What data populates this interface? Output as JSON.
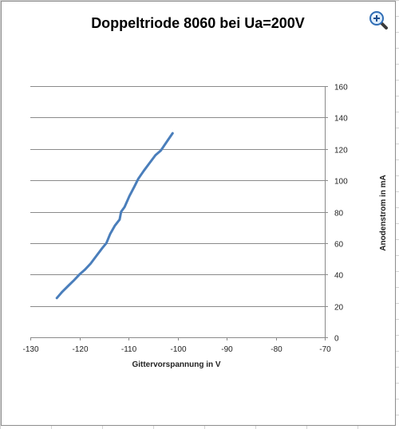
{
  "chart_data": {
    "type": "line",
    "title": "Doppeltriode 8060 bei Ua=200V",
    "xlabel": "Gittervorspannung  in V",
    "ylabel": "Anodenstrom in mA",
    "xlim": [
      -130,
      -70
    ],
    "ylim": [
      0,
      160
    ],
    "xticks": [
      "-130",
      "-120",
      "-110",
      "-100",
      "-90",
      "-80",
      "-70"
    ],
    "yticks": [
      "0",
      "20",
      "40",
      "60",
      "80",
      "100",
      "120",
      "140",
      "160"
    ],
    "y_axis_side": "right",
    "grid": "horizontal",
    "legend": "none",
    "series": [
      {
        "color": "#4a7ebb",
        "points": [
          [
            -124.6,
            25
          ],
          [
            -123.5,
            29
          ],
          [
            -122.2,
            33
          ],
          [
            -121.2,
            36
          ],
          [
            -120.0,
            40
          ],
          [
            -118.9,
            43
          ],
          [
            -117.7,
            47
          ],
          [
            -116.5,
            52
          ],
          [
            -115.3,
            57
          ],
          [
            -114.5,
            60
          ],
          [
            -113.7,
            66
          ],
          [
            -112.8,
            71
          ],
          [
            -111.8,
            75
          ],
          [
            -111.5,
            80
          ],
          [
            -110.8,
            83
          ],
          [
            -109.8,
            90
          ],
          [
            -108.8,
            96
          ],
          [
            -108.0,
            101
          ],
          [
            -106.9,
            106
          ],
          [
            -105.7,
            111
          ],
          [
            -104.5,
            116
          ],
          [
            -103.4,
            119
          ],
          [
            -102.1,
            125
          ],
          [
            -101.0,
            130
          ]
        ]
      }
    ]
  },
  "ui": {
    "zoom_icon": "zoom-in-magnifier-icon"
  }
}
